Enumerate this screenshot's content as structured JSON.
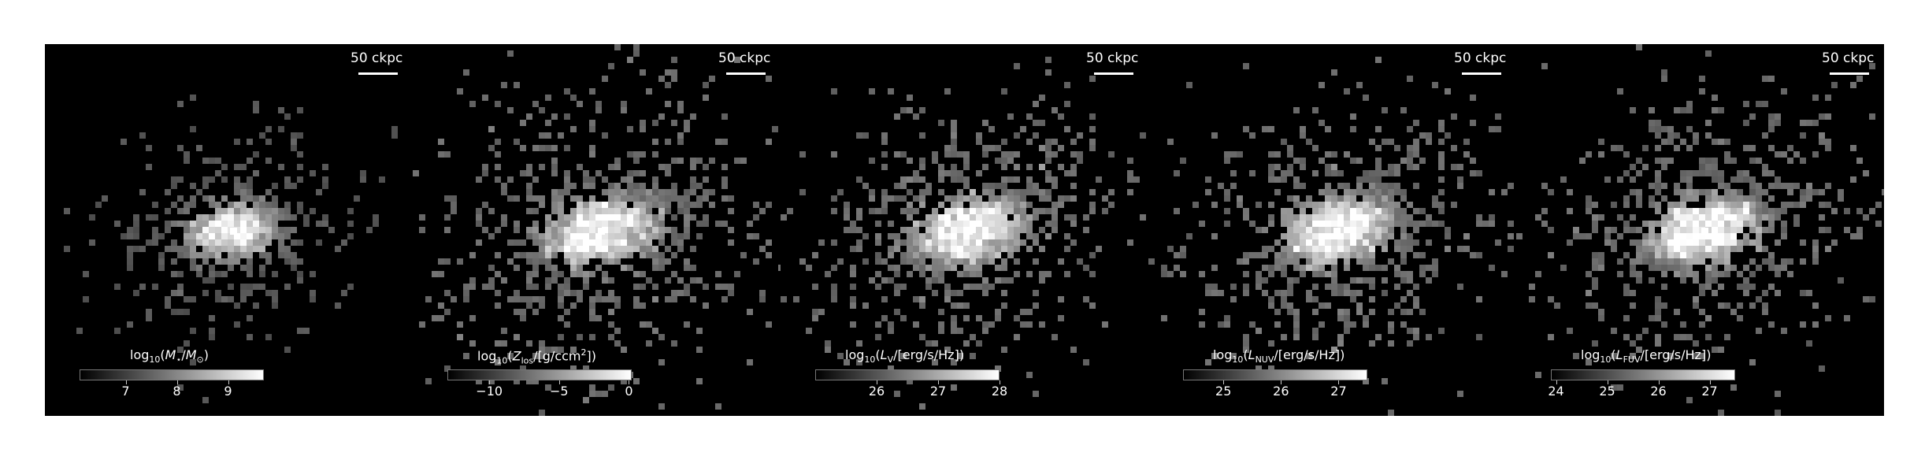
{
  "chart_data": [
    {
      "type": "heatmap",
      "scalebar": "50 ckpc",
      "colorbar": {
        "title_parts": [
          "log",
          "10",
          "(",
          "M",
          "⋆",
          "/",
          "M",
          "⊙",
          ")"
        ],
        "ticks": [
          7,
          8,
          9
        ],
        "tick_labels": [
          "7",
          "8",
          "9"
        ],
        "range": [
          6.1,
          9.7
        ],
        "cmap": "grayscale"
      },
      "center_value": 9.6,
      "spread": "compact"
    },
    {
      "type": "heatmap",
      "scalebar": "50 ckpc",
      "colorbar": {
        "title_parts": [
          "log",
          "10",
          "(",
          "Z",
          "los",
          "/[g/ccm",
          "2",
          "])"
        ],
        "ticks": [
          -10,
          -5,
          0
        ],
        "tick_labels": [
          "−10",
          "−5",
          "0"
        ],
        "range": [
          -13,
          0.2
        ],
        "cmap": "grayscale"
      },
      "center_value": -0.2,
      "spread": "wide"
    },
    {
      "type": "heatmap",
      "scalebar": "50 ckpc",
      "colorbar": {
        "title_parts": [
          "log",
          "10",
          "(",
          "L",
          "V",
          "/[erg/s/Hz])"
        ],
        "ticks": [
          26,
          27,
          28
        ],
        "tick_labels": [
          "26",
          "27",
          "28"
        ],
        "range": [
          25.0,
          28.0
        ],
        "cmap": "grayscale"
      },
      "center_value": 27.9,
      "spread": "medium"
    },
    {
      "type": "heatmap",
      "scalebar": "50 ckpc",
      "colorbar": {
        "title_parts": [
          "log",
          "10",
          "(",
          "L",
          "NUV",
          "/[erg/s/Hz])"
        ],
        "ticks": [
          25,
          26,
          27
        ],
        "tick_labels": [
          "25",
          "26",
          "27"
        ],
        "range": [
          24.3,
          27.5
        ],
        "cmap": "grayscale"
      },
      "center_value": 27.4,
      "spread": "medium"
    },
    {
      "type": "heatmap",
      "scalebar": "50 ckpc",
      "colorbar": {
        "title_parts": [
          "log",
          "10",
          "(",
          "L",
          "FUV",
          "/[erg/s/Hz])"
        ],
        "ticks": [
          24,
          25,
          26,
          27
        ],
        "tick_labels": [
          "24",
          "25",
          "26",
          "27"
        ],
        "range": [
          23.9,
          27.5
        ],
        "cmap": "grayscale"
      },
      "center_value": 27.4,
      "spread": "medium"
    }
  ]
}
